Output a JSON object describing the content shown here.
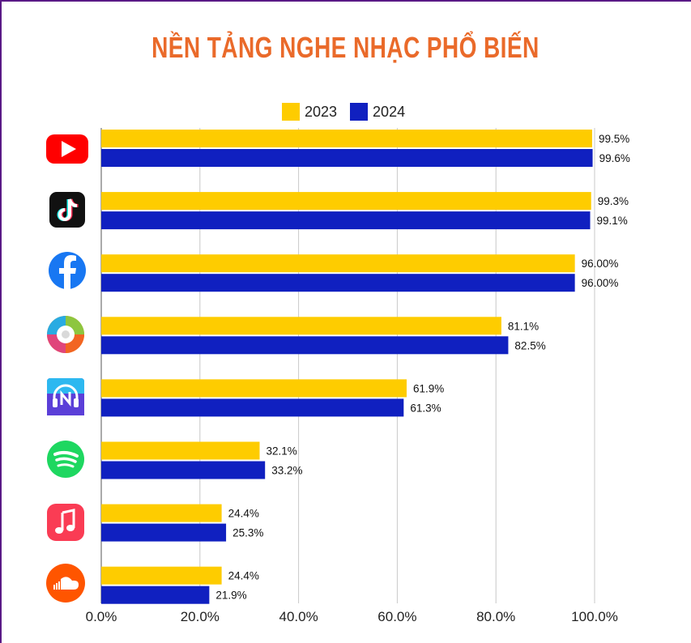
{
  "title": "NỀN TẢNG NGHE NHẠC PHỔ BIẾN",
  "colors": {
    "2023": "#fecc00",
    "2024": "#1020c0",
    "title": "#ea6a2a"
  },
  "chart_data": {
    "type": "bar",
    "orientation": "horizontal",
    "categories": [
      "youtube-icon",
      "tiktok-icon",
      "facebook-icon",
      "music-disc-app-icon",
      "nhaccuatui-icon",
      "spotify-icon",
      "apple-music-icon",
      "soundcloud-icon"
    ],
    "series": [
      {
        "name": "2023",
        "values": [
          99.5,
          99.3,
          96.0,
          81.1,
          61.9,
          32.1,
          24.4,
          24.4
        ],
        "labels": [
          "99.5%",
          "99.3%",
          "96.00%",
          "81.1%",
          "61.9%",
          "32.1%",
          "24.4%",
          "24.4%"
        ]
      },
      {
        "name": "2024",
        "values": [
          99.6,
          99.1,
          96.0,
          82.5,
          61.3,
          33.2,
          25.3,
          21.9
        ],
        "labels": [
          "99.6%",
          "99.1%",
          "96.00%",
          "82.5%",
          "61.3%",
          "33.2%",
          "25.3%",
          "21.9%"
        ]
      }
    ],
    "xlim": [
      0,
      100
    ],
    "xticks": [
      0,
      20,
      40,
      60,
      80,
      100
    ],
    "xtick_labels": [
      "0.0%",
      "20.0%",
      "40.0%",
      "60.0%",
      "80.0%",
      "100.0%"
    ],
    "grid": "vertical",
    "legend_position": "top-center"
  }
}
